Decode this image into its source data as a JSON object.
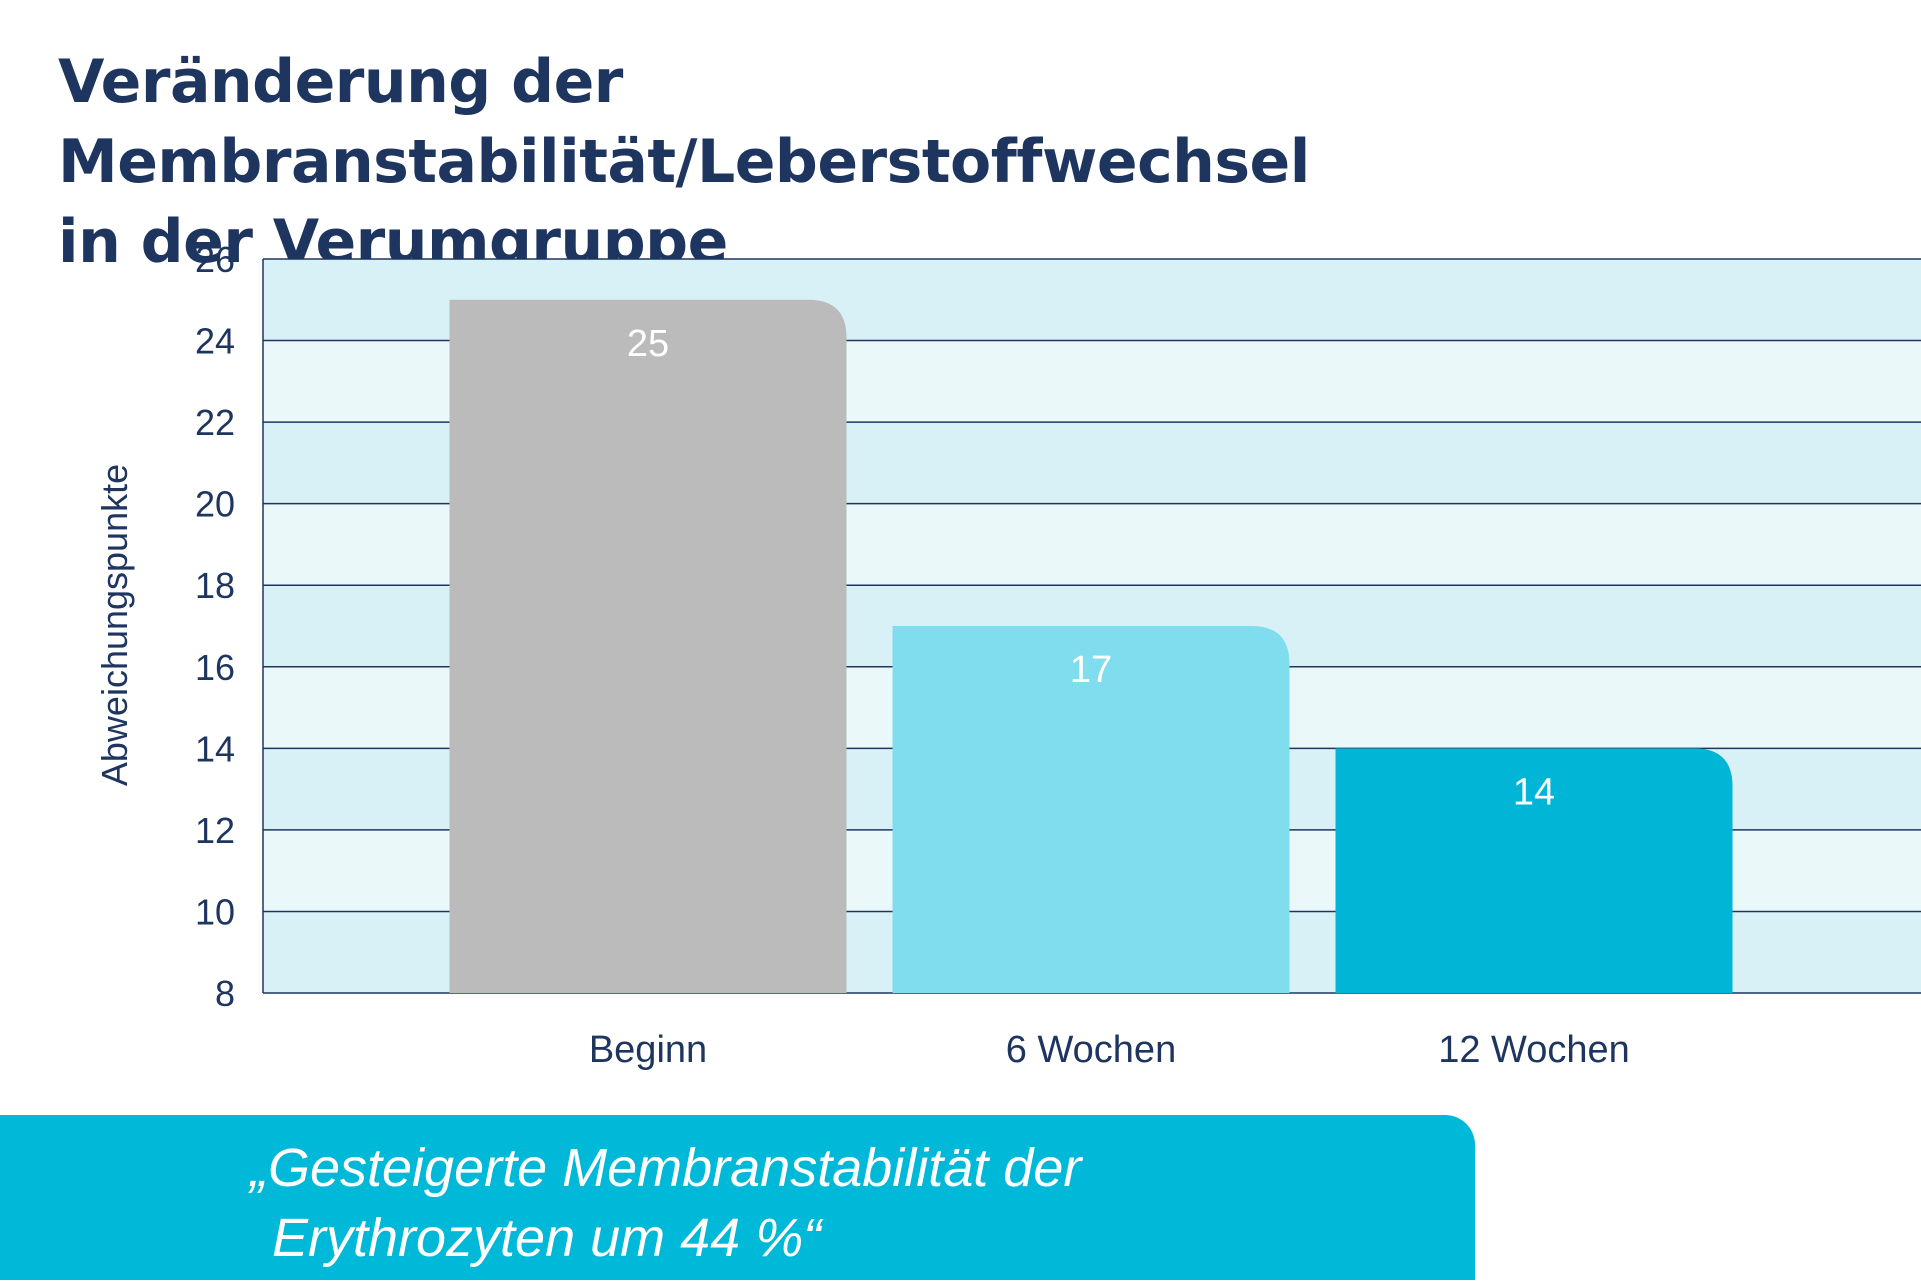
{
  "title": {
    "line1": "Veränderung der Membranstabilität/Leberstoffwechsel",
    "line2": "in der Verumgruppe"
  },
  "chart_data": {
    "type": "bar",
    "categories": [
      "Beginn",
      "6 Wochen",
      "12 Wochen"
    ],
    "values": [
      25,
      17,
      14
    ],
    "data_labels": [
      "25",
      "17",
      "14"
    ],
    "ylabel": "Abweichungspunkte",
    "ylim": [
      8,
      26
    ],
    "yticks": [
      "8",
      "10",
      "12",
      "14",
      "16",
      "18",
      "20",
      "22",
      "24",
      "26"
    ],
    "grid": true,
    "legend": "none",
    "colors": {
      "bars": [
        "#bbbbbb",
        "#80dded",
        "#00b5d5"
      ],
      "band_dark": "#d8f1f6",
      "band_light": "#eaf8fa",
      "gridline": "#1e3560",
      "text": "#1e3560",
      "data_label": "#ffffff"
    }
  },
  "quote": {
    "line1": "„Gesteigerte Membranstabilität der",
    "line2": "Erythrozyten um 44 %“"
  }
}
